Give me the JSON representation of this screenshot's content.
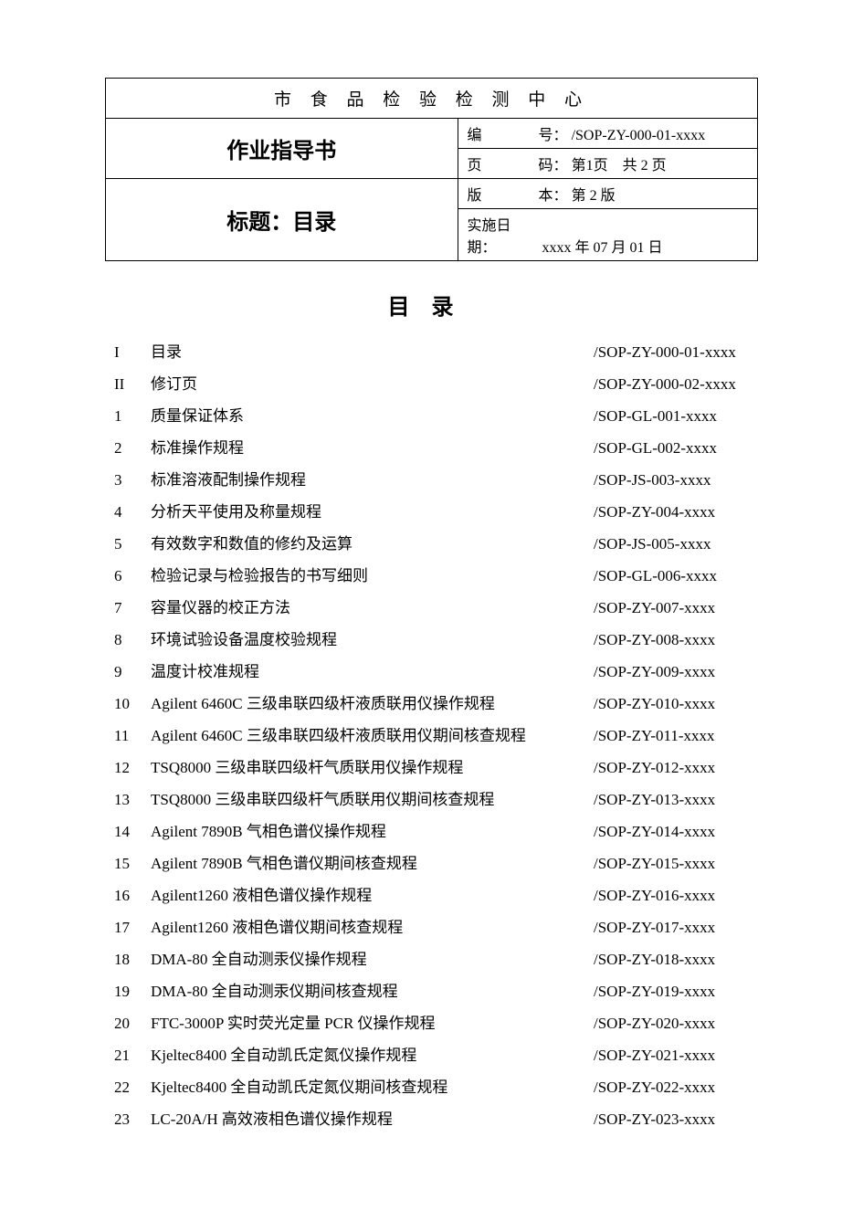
{
  "header": {
    "org": "市 食 品 检 验 检 测 中 心",
    "doc_type": "作业指导书",
    "title_label": "标题：目录",
    "code_label": "编",
    "code_label2": "号：",
    "code_value": "/SOP-ZY-000-01-xxxx",
    "page_label": "页",
    "page_label2": "码：",
    "page_value": "第1页　共 2 页",
    "ver_label": "版",
    "ver_label2": "本：",
    "ver_value": "第 2 版",
    "date_label": "实施日期：",
    "date_value": "xxxx 年 07 月 01 日"
  },
  "toc_heading": "目录",
  "toc": [
    {
      "n": "I",
      "t": "目录",
      "c": "/SOP-ZY-000-01-xxxx"
    },
    {
      "n": "II",
      "t": "修订页",
      "c": "/SOP-ZY-000-02-xxxx"
    },
    {
      "n": "1",
      "t": "质量保证体系",
      "c": "/SOP-GL-001-xxxx"
    },
    {
      "n": "2",
      "t": "标准操作规程",
      "c": "/SOP-GL-002-xxxx"
    },
    {
      "n": "3",
      "t": "标准溶液配制操作规程",
      "c": "/SOP-JS-003-xxxx"
    },
    {
      "n": "4",
      "t": "分析天平使用及称量规程",
      "c": "/SOP-ZY-004-xxxx"
    },
    {
      "n": "5",
      "t": "有效数字和数值的修约及运算",
      "c": "/SOP-JS-005-xxxx"
    },
    {
      "n": "6",
      "t": "检验记录与检验报告的书写细则",
      "c": "/SOP-GL-006-xxxx"
    },
    {
      "n": "7",
      "t": "容量仪器的校正方法",
      "c": "/SOP-ZY-007-xxxx"
    },
    {
      "n": "8",
      "t": "环境试验设备温度校验规程",
      "c": "/SOP-ZY-008-xxxx"
    },
    {
      "n": "9",
      "t": "温度计校准规程",
      "c": "/SOP-ZY-009-xxxx"
    },
    {
      "n": "10",
      "t": "Agilent 6460C 三级串联四级杆液质联用仪操作规程",
      "c": "/SOP-ZY-010-xxxx"
    },
    {
      "n": "11",
      "t": "Agilent 6460C 三级串联四级杆液质联用仪期间核查规程",
      "c": "/SOP-ZY-011-xxxx"
    },
    {
      "n": "12",
      "t": "TSQ8000 三级串联四级杆气质联用仪操作规程",
      "c": "/SOP-ZY-012-xxxx"
    },
    {
      "n": "13",
      "t": "TSQ8000 三级串联四级杆气质联用仪期间核查规程",
      "c": "/SOP-ZY-013-xxxx"
    },
    {
      "n": "14",
      "t": "Agilent 7890B 气相色谱仪操作规程",
      "c": "/SOP-ZY-014-xxxx"
    },
    {
      "n": "15",
      "t": "Agilent 7890B 气相色谱仪期间核查规程",
      "c": "/SOP-ZY-015-xxxx"
    },
    {
      "n": "16",
      "t": "Agilent1260 液相色谱仪操作规程",
      "c": "/SOP-ZY-016-xxxx"
    },
    {
      "n": "17",
      "t": "Agilent1260 液相色谱仪期间核查规程",
      "c": "/SOP-ZY-017-xxxx"
    },
    {
      "n": "18",
      "t": "DMA-80 全自动测汞仪操作规程",
      "c": "/SOP-ZY-018-xxxx"
    },
    {
      "n": "19",
      "t": "DMA-80 全自动测汞仪期间核查规程",
      "c": "/SOP-ZY-019-xxxx"
    },
    {
      "n": "20",
      "t": "FTC-3000P 实时荧光定量 PCR 仪操作规程",
      "c": "/SOP-ZY-020-xxxx"
    },
    {
      "n": "21",
      "t": "Kjeltec8400 全自动凯氏定氮仪操作规程",
      "c": "/SOP-ZY-021-xxxx"
    },
    {
      "n": "22",
      "t": "Kjeltec8400 全自动凯氏定氮仪期间核查规程",
      "c": "/SOP-ZY-022-xxxx"
    },
    {
      "n": "23",
      "t": "LC-20A/H 高效液相色谱仪操作规程",
      "c": "/SOP-ZY-023-xxxx"
    }
  ],
  "colors": {
    "text": "#000000",
    "background": "#ffffff",
    "border": "#000000"
  },
  "fonts": {
    "body": "SimSun",
    "numeric": "Times New Roman",
    "title_size_pt": 18,
    "body_size_pt": 12
  }
}
